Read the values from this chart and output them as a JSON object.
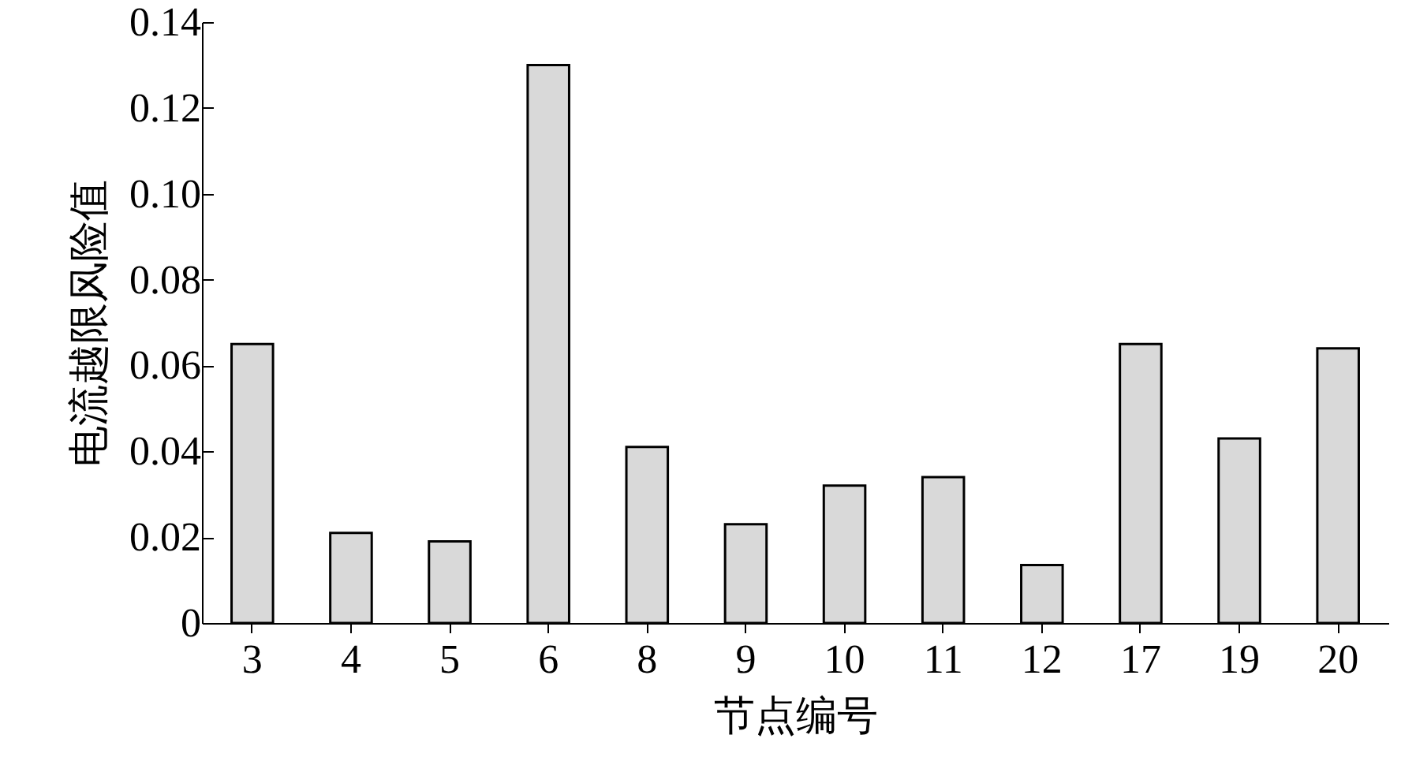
{
  "chart_data": {
    "type": "bar",
    "xlabel": "节点编号",
    "ylabel": "电流越限风险值",
    "categories": [
      "3",
      "4",
      "5",
      "6",
      "8",
      "9",
      "10",
      "11",
      "12",
      "17",
      "19",
      "20"
    ],
    "values": [
      0.065,
      0.021,
      0.019,
      0.13,
      0.041,
      0.023,
      0.032,
      0.034,
      0.0135,
      0.065,
      0.043,
      0.064
    ],
    "color": "#d9d9d9",
    "ylim": [
      0,
      0.14
    ],
    "yticks": [
      0,
      {
        "value": 0.02,
        "label": "0.02"
      },
      {
        "value": 0.04,
        "label": "0.04"
      },
      {
        "value": 0.06,
        "label": "0.06"
      },
      {
        "value": 0.08,
        "label": "0.08"
      },
      {
        "value": 0.1,
        "label": "0.10"
      },
      {
        "value": 0.12,
        "label": "0.12"
      },
      {
        "value": 0.14,
        "label": "0.14"
      }
    ],
    "grid": false
  }
}
